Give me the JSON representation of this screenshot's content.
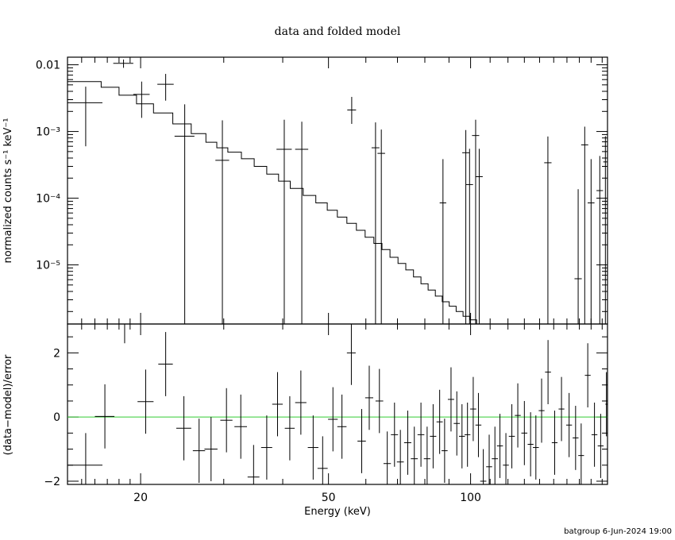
{
  "title": "data and folded model",
  "footer": "batgroup  6-Jun-2024 19:00",
  "chart_data": [
    {
      "type": "scatter",
      "panel": "top",
      "title": "data and folded model",
      "xlabel": "Energy (keV)",
      "ylabel": "normalized counts s⁻¹ keV⁻¹",
      "xscale": "log",
      "yscale": "log",
      "xlim": [
        14,
        195
      ],
      "ylim": [
        1.3e-06,
        0.013
      ],
      "y_tick_labels": [
        "0.01",
        "10⁻³",
        "10⁻⁴",
        "10⁻⁵"
      ],
      "x_tick_labels": [
        "20",
        "50",
        "100"
      ],
      "series": [
        {
          "role": "data with error bars",
          "points": [
            {
              "x": 15.3,
              "xerr": 1.3,
              "y": 0.0027,
              "yerr_lo": 0.0021,
              "yerr_hi": 0.002
            },
            {
              "x": 18.4,
              "xerr": 0.9,
              "y": 0.0105,
              "yerr_lo": 0.0015,
              "yerr_hi": 0.0015
            },
            {
              "x": 20.1,
              "xerr": 0.8,
              "y": 0.0036,
              "yerr_lo": 0.002,
              "yerr_hi": 0.002
            },
            {
              "x": 22.6,
              "xerr": 0.9,
              "y": 0.0051,
              "yerr_lo": 0.0022,
              "yerr_hi": 0.0022
            },
            {
              "x": 24.8,
              "xerr": 1.2,
              "y": 0.00085,
              "yerr_lo": 0.00085,
              "yerr_hi": 0.0017
            },
            {
              "x": 29.8,
              "xerr": 1.0,
              "y": 0.00037,
              "yerr_lo": 0.00037,
              "yerr_hi": 0.0011
            },
            {
              "x": 40.3,
              "xerr": 1.5,
              "y": 0.00054,
              "yerr_lo": 0.00054,
              "yerr_hi": 0.00096
            },
            {
              "x": 43.9,
              "xerr": 1.4,
              "y": 0.00054,
              "yerr_lo": 0.00054,
              "yerr_hi": 0.00086
            },
            {
              "x": 56.0,
              "xerr": 1.2,
              "y": 0.0021,
              "yerr_lo": 0.0008,
              "yerr_hi": 0.0012
            },
            {
              "x": 62.9,
              "xerr": 1.2,
              "y": 0.00057,
              "yerr_lo": 0.00057,
              "yerr_hi": 0.0008
            },
            {
              "x": 64.7,
              "xerr": 1.2,
              "y": 0.00047,
              "yerr_lo": 0.00047,
              "yerr_hi": 0.0006
            },
            {
              "x": 87.4,
              "xerr": 1.4,
              "y": 8.5e-05,
              "yerr_lo": 8.5e-05,
              "yerr_hi": 0.0003
            },
            {
              "x": 97.7,
              "xerr": 1.7,
              "y": 0.00048,
              "yerr_lo": 0.00048,
              "yerr_hi": 0.00057
            },
            {
              "x": 99.5,
              "xerr": 1.7,
              "y": 0.00016,
              "yerr_lo": 0.00016,
              "yerr_hi": 0.00039
            },
            {
              "x": 102.5,
              "xerr": 1.8,
              "y": 0.00087,
              "yerr_lo": 0.00087,
              "yerr_hi": 0.00063
            },
            {
              "x": 104.3,
              "xerr": 1.8,
              "y": 0.00021,
              "yerr_lo": 0.00021,
              "yerr_hi": 0.00034
            },
            {
              "x": 145.8,
              "xerr": 2.6,
              "y": 0.00034,
              "yerr_lo": 0.00034,
              "yerr_hi": 0.0005
            },
            {
              "x": 169.0,
              "xerr": 3.0,
              "y": 6.2e-06,
              "yerr_lo": 6.2e-06,
              "yerr_hi": 0.00013
            },
            {
              "x": 174.5,
              "xerr": 3.0,
              "y": 0.00063,
              "yerr_lo": 0.00063,
              "yerr_hi": 0.00055
            },
            {
              "x": 180.0,
              "xerr": 3.0,
              "y": 8.5e-05,
              "yerr_lo": 8.5e-05,
              "yerr_hi": 0.0003
            },
            {
              "x": 187.8,
              "xerr": 3.0,
              "y": 0.00013,
              "yerr_lo": 0.00013,
              "yerr_hi": 0.0003
            },
            {
              "x": 193.0,
              "xerr": 2.0,
              "y": 0.00035,
              "yerr_lo": 0.00035,
              "yerr_hi": 0.0005
            }
          ]
        },
        {
          "role": "folded model (stepped)",
          "bins": [
            {
              "x0": 14.0,
              "x1": 16.5,
              "y": 0.0056
            },
            {
              "x0": 16.5,
              "x1": 18.0,
              "y": 0.0046
            },
            {
              "x0": 18.0,
              "x1": 19.6,
              "y": 0.0035
            },
            {
              "x0": 19.6,
              "x1": 21.3,
              "y": 0.0026
            },
            {
              "x0": 21.3,
              "x1": 23.4,
              "y": 0.0019
            },
            {
              "x0": 23.4,
              "x1": 25.6,
              "y": 0.0013
            },
            {
              "x0": 25.6,
              "x1": 27.5,
              "y": 0.00093
            },
            {
              "x0": 27.5,
              "x1": 29.0,
              "y": 0.00069
            },
            {
              "x0": 29.0,
              "x1": 30.6,
              "y": 0.00057
            },
            {
              "x0": 30.6,
              "x1": 32.7,
              "y": 0.00049
            },
            {
              "x0": 32.7,
              "x1": 34.8,
              "y": 0.00039
            },
            {
              "x0": 34.8,
              "x1": 37.0,
              "y": 0.0003
            },
            {
              "x0": 37.0,
              "x1": 39.2,
              "y": 0.00023
            },
            {
              "x0": 39.2,
              "x1": 41.5,
              "y": 0.00018
            },
            {
              "x0": 41.5,
              "x1": 44.2,
              "y": 0.00014
            },
            {
              "x0": 44.2,
              "x1": 47.0,
              "y": 0.00011
            },
            {
              "x0": 47.0,
              "x1": 49.7,
              "y": 8.5e-05
            },
            {
              "x0": 49.7,
              "x1": 52.2,
              "y": 6.6e-05
            },
            {
              "x0": 52.2,
              "x1": 54.7,
              "y": 5.2e-05
            },
            {
              "x0": 54.7,
              "x1": 57.3,
              "y": 4.2e-05
            },
            {
              "x0": 57.3,
              "x1": 59.8,
              "y": 3.3e-05
            },
            {
              "x0": 59.8,
              "x1": 62.4,
              "y": 2.6e-05
            },
            {
              "x0": 62.4,
              "x1": 64.9,
              "y": 2.1e-05
            },
            {
              "x0": 64.9,
              "x1": 67.5,
              "y": 1.7e-05
            },
            {
              "x0": 67.5,
              "x1": 70.2,
              "y": 1.3e-05
            },
            {
              "x0": 70.2,
              "x1": 72.9,
              "y": 1.05e-05
            },
            {
              "x0": 72.9,
              "x1": 75.7,
              "y": 8.4e-06
            },
            {
              "x0": 75.7,
              "x1": 78.5,
              "y": 6.6e-06
            },
            {
              "x0": 78.5,
              "x1": 81.3,
              "y": 5.2e-06
            },
            {
              "x0": 81.3,
              "x1": 84.2,
              "y": 4.2e-06
            },
            {
              "x0": 84.2,
              "x1": 87.1,
              "y": 3.4e-06
            },
            {
              "x0": 87.1,
              "x1": 90.1,
              "y": 2.8e-06
            },
            {
              "x0": 90.1,
              "x1": 93.2,
              "y": 2.4e-06
            },
            {
              "x0": 93.2,
              "x1": 96.4,
              "y": 2e-06
            },
            {
              "x0": 96.4,
              "x1": 99.7,
              "y": 1.7e-06
            },
            {
              "x0": 99.7,
              "x1": 103.0,
              "y": 1.5e-06
            },
            {
              "x0": 103.0,
              "x1": 106.5,
              "y": 1.3e-06
            },
            {
              "x0": 106.5,
              "x1": 195.0,
              "y": 1.3e-06
            }
          ]
        }
      ]
    },
    {
      "type": "scatter",
      "panel": "bottom",
      "xlabel": "Energy (keV)",
      "ylabel": "(data−model)/error",
      "xscale": "log",
      "xlim": [
        14,
        195
      ],
      "ylim": [
        -2.1,
        2.9
      ],
      "x_tick_labels": [
        "20",
        "50",
        "100"
      ],
      "y_tick_labels": [
        "2",
        "0",
        "−2"
      ],
      "reference_line": {
        "y": 0,
        "color": "#33cc33"
      },
      "points": [
        {
          "x": 15.3,
          "xerr": 1.3,
          "y": -1.5,
          "yerr": 1.0
        },
        {
          "x": 16.8,
          "xerr": 0.8,
          "y": 0.02,
          "yerr": 1.0
        },
        {
          "x": 18.5,
          "xerr": 0.8,
          "y": 2.9,
          "yerr": 0.6
        },
        {
          "x": 20.5,
          "xerr": 0.8,
          "y": 0.48,
          "yerr": 1.0
        },
        {
          "x": 22.6,
          "xerr": 0.8,
          "y": 1.65,
          "yerr": 1.0
        },
        {
          "x": 24.7,
          "xerr": 0.9,
          "y": -0.35,
          "yerr": 1.0
        },
        {
          "x": 26.6,
          "xerr": 0.8,
          "y": -1.05,
          "yerr": 1.0
        },
        {
          "x": 28.2,
          "xerr": 0.9,
          "y": -1.0,
          "yerr": 1.0
        },
        {
          "x": 30.4,
          "xerr": 0.9,
          "y": -0.1,
          "yerr": 1.0
        },
        {
          "x": 32.6,
          "xerr": 1.0,
          "y": -0.3,
          "yerr": 1.0
        },
        {
          "x": 34.7,
          "xerr": 1.0,
          "y": -1.87,
          "yerr": 1.0
        },
        {
          "x": 37.0,
          "xerr": 1.0,
          "y": -0.95,
          "yerr": 1.0
        },
        {
          "x": 39.0,
          "xerr": 1.0,
          "y": 0.4,
          "yerr": 1.0
        },
        {
          "x": 41.4,
          "xerr": 1.0,
          "y": -0.35,
          "yerr": 1.0
        },
        {
          "x": 43.7,
          "xerr": 1.2,
          "y": 0.45,
          "yerr": 1.0
        },
        {
          "x": 46.4,
          "xerr": 1.2,
          "y": -0.95,
          "yerr": 1.0
        },
        {
          "x": 48.6,
          "xerr": 1.2,
          "y": -1.6,
          "yerr": 1.0
        },
        {
          "x": 51.1,
          "xerr": 1.2,
          "y": -0.07,
          "yerr": 1.0
        },
        {
          "x": 53.4,
          "xerr": 1.2,
          "y": -0.3,
          "yerr": 1.0
        },
        {
          "x": 55.9,
          "xerr": 1.2,
          "y": 2.0,
          "yerr": 1.0
        },
        {
          "x": 58.8,
          "xerr": 1.2,
          "y": -0.75,
          "yerr": 1.0
        },
        {
          "x": 61.0,
          "xerr": 1.2,
          "y": 0.6,
          "yerr": 1.0
        },
        {
          "x": 64.1,
          "xerr": 1.2,
          "y": 0.5,
          "yerr": 1.0
        },
        {
          "x": 66.6,
          "xerr": 1.2,
          "y": -1.45,
          "yerr": 1.0
        },
        {
          "x": 69.0,
          "xerr": 1.2,
          "y": -0.55,
          "yerr": 1.0
        },
        {
          "x": 71.0,
          "xerr": 1.2,
          "y": -1.4,
          "yerr": 1.0
        },
        {
          "x": 73.6,
          "xerr": 1.3,
          "y": -0.8,
          "yerr": 1.0
        },
        {
          "x": 76.0,
          "xerr": 1.3,
          "y": -1.3,
          "yerr": 1.0
        },
        {
          "x": 78.5,
          "xerr": 1.3,
          "y": -0.55,
          "yerr": 1.0
        },
        {
          "x": 80.9,
          "xerr": 1.3,
          "y": -1.3,
          "yerr": 1.0
        },
        {
          "x": 83.3,
          "xerr": 1.3,
          "y": -0.6,
          "yerr": 1.0
        },
        {
          "x": 86.0,
          "xerr": 1.3,
          "y": -0.15,
          "yerr": 1.0
        },
        {
          "x": 88.1,
          "xerr": 1.3,
          "y": -1.05,
          "yerr": 1.0
        },
        {
          "x": 90.9,
          "xerr": 1.4,
          "y": 0.55,
          "yerr": 1.0
        },
        {
          "x": 93.5,
          "xerr": 1.4,
          "y": -0.2,
          "yerr": 1.0
        },
        {
          "x": 95.9,
          "xerr": 1.4,
          "y": -0.6,
          "yerr": 1.0
        },
        {
          "x": 98.5,
          "xerr": 1.4,
          "y": -0.55,
          "yerr": 1.0
        },
        {
          "x": 101.3,
          "xerr": 1.5,
          "y": 0.25,
          "yerr": 1.0
        },
        {
          "x": 103.9,
          "xerr": 1.5,
          "y": -0.25,
          "yerr": 1.0
        },
        {
          "x": 106.4,
          "xerr": 1.6,
          "y": -2.0,
          "yerr": 1.0
        },
        {
          "x": 109.5,
          "xerr": 1.6,
          "y": -1.55,
          "yerr": 1.0
        },
        {
          "x": 112.6,
          "xerr": 1.7,
          "y": -1.3,
          "yerr": 1.0
        },
        {
          "x": 115.4,
          "xerr": 1.7,
          "y": -0.9,
          "yerr": 1.0
        },
        {
          "x": 118.8,
          "xerr": 1.7,
          "y": -1.5,
          "yerr": 1.0
        },
        {
          "x": 122.3,
          "xerr": 1.8,
          "y": -0.6,
          "yerr": 1.0
        },
        {
          "x": 125.9,
          "xerr": 1.8,
          "y": 0.05,
          "yerr": 1.0
        },
        {
          "x": 130.0,
          "xerr": 1.9,
          "y": -0.5,
          "yerr": 1.0
        },
        {
          "x": 134.0,
          "xerr": 1.9,
          "y": -0.85,
          "yerr": 1.0
        },
        {
          "x": 137.5,
          "xerr": 2.0,
          "y": -0.95,
          "yerr": 1.0
        },
        {
          "x": 141.4,
          "xerr": 2.0,
          "y": 0.2,
          "yerr": 1.0
        },
        {
          "x": 145.9,
          "xerr": 2.1,
          "y": 1.4,
          "yerr": 1.0
        },
        {
          "x": 150.7,
          "xerr": 2.1,
          "y": -0.8,
          "yerr": 1.0
        },
        {
          "x": 155.8,
          "xerr": 2.2,
          "y": 0.25,
          "yerr": 1.0
        },
        {
          "x": 161.7,
          "xerr": 2.3,
          "y": -0.25,
          "yerr": 1.0
        },
        {
          "x": 166.9,
          "xerr": 2.4,
          "y": -0.65,
          "yerr": 1.0
        },
        {
          "x": 171.5,
          "xerr": 2.4,
          "y": -1.2,
          "yerr": 1.0
        },
        {
          "x": 177.1,
          "xerr": 2.5,
          "y": 1.3,
          "yerr": 1.0
        },
        {
          "x": 183.0,
          "xerr": 2.6,
          "y": -0.55,
          "yerr": 1.0
        },
        {
          "x": 188.6,
          "xerr": 2.7,
          "y": -0.9,
          "yerr": 1.0
        },
        {
          "x": 194.0,
          "xerr": 1.0,
          "y": 0.4,
          "yerr": 1.0
        }
      ]
    }
  ]
}
